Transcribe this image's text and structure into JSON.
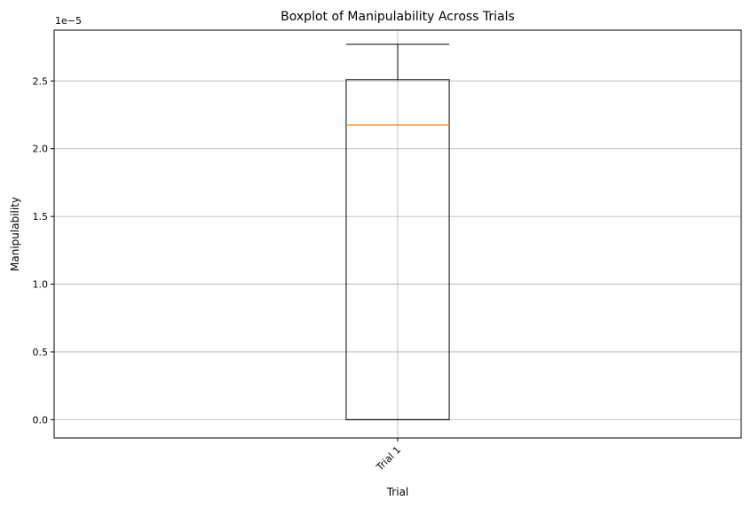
{
  "chart_data": {
    "type": "boxplot",
    "title": "Boxplot of Manipulability Across Trials",
    "xlabel": "Trial",
    "ylabel": "Manipulability",
    "scale_label": "1e−5",
    "categories": [
      "Trial 1"
    ],
    "boxes": [
      {
        "category": "Trial 1",
        "whisker_low": 0.0,
        "q1": 0.0,
        "median": 2.175,
        "q3": 2.51,
        "whisker_high": 2.77
      }
    ],
    "yticks": [
      0.0,
      0.5,
      1.0,
      1.5,
      2.0,
      2.5
    ],
    "ytick_labels": [
      "0.0",
      "0.5",
      "1.0",
      "1.5",
      "2.0",
      "2.5"
    ],
    "ylim": [
      -0.135,
      2.875
    ],
    "grid": true,
    "xtick_rotation": "45deg",
    "colors": {
      "box": "#000000",
      "median": "#ff7f0e",
      "grid": "#b0b0b0"
    }
  }
}
